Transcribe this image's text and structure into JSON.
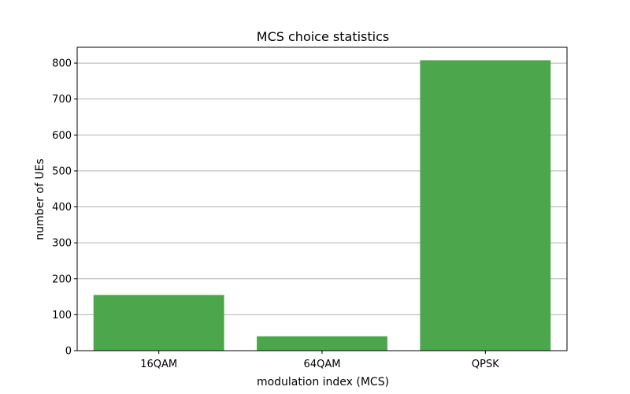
{
  "chart_data": {
    "type": "bar",
    "title": "MCS choice statistics",
    "xlabel": "modulation index (MCS)",
    "ylabel": "number of UEs",
    "categories": [
      "16QAM",
      "64QAM",
      "QPSK"
    ],
    "values": [
      155,
      40,
      808
    ],
    "ylim": [
      0,
      844
    ],
    "yticks": [
      0,
      100,
      200,
      300,
      400,
      500,
      600,
      700,
      800
    ],
    "grid": "y",
    "bar_color": "#4ca64c",
    "grid_color": "#b0b0b0",
    "axis_color": "#000000"
  }
}
